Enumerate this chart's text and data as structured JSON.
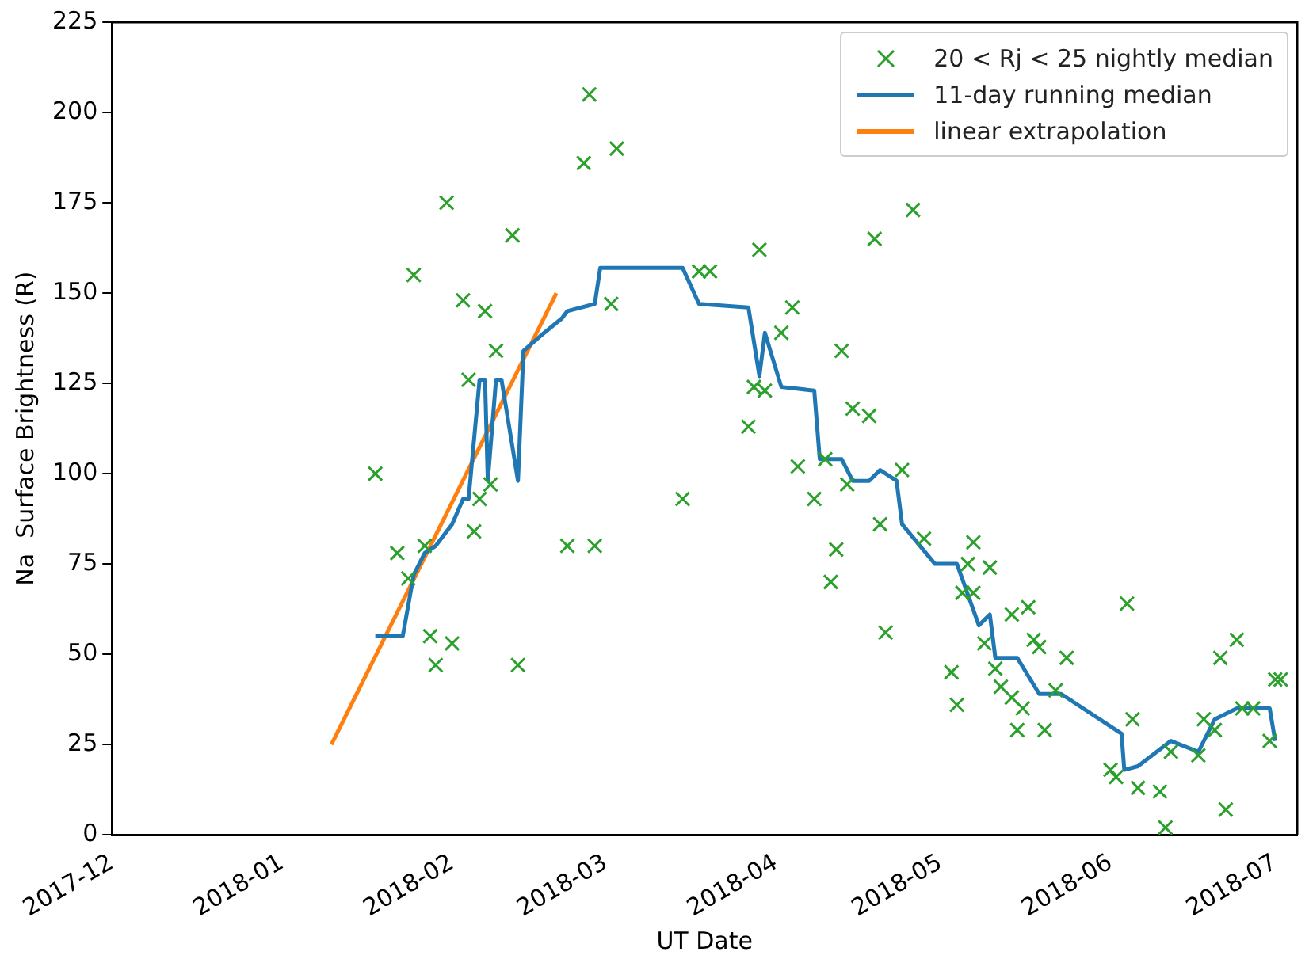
{
  "chart_data": {
    "type": "scatter",
    "xlabel": "UT Date",
    "ylabel": "Na  Surface Brightness (R)",
    "xlim": [
      "2017-12-01",
      "2018-07-05"
    ],
    "xticks": [
      "2017-12",
      "2018-01",
      "2018-02",
      "2018-03",
      "2018-04",
      "2018-05",
      "2018-06",
      "2018-07"
    ],
    "ylim": [
      0,
      225
    ],
    "yticks": [
      0,
      25,
      50,
      75,
      100,
      125,
      150,
      175,
      200,
      225
    ],
    "grid": false,
    "legend": "top right",
    "series": [
      {
        "name": "20 < Rj < 25 nightly median",
        "type": "scatter",
        "marker": "cross",
        "color": "#2ca02c",
        "x": [
          "2018-01-18",
          "2018-01-25",
          "2018-01-31",
          "2018-02-03",
          "2018-02-07",
          "2018-02-12",
          "2018-02-09",
          "2018-02-04",
          "2018-01-22",
          "2018-01-27",
          "2018-01-24",
          "2018-02-06",
          "2018-02-08",
          "2018-02-05",
          "2018-01-28",
          "2018-02-01",
          "2018-01-29",
          "2018-02-13",
          "2018-02-26",
          "2018-02-25",
          "2018-03-03",
          "2018-03-02",
          "2018-02-22",
          "2018-02-27",
          "2018-03-15",
          "2018-03-18",
          "2018-03-20",
          "2018-03-29",
          "2018-04-04",
          "2018-04-02",
          "2018-03-28",
          "2018-03-30",
          "2018-03-27",
          "2018-04-13",
          "2018-04-19",
          "2018-04-26",
          "2018-04-15",
          "2018-04-18",
          "2018-04-05",
          "2018-04-10",
          "2018-04-08",
          "2018-04-14",
          "2018-04-24",
          "2018-04-20",
          "2018-04-12",
          "2018-04-11",
          "2018-04-21",
          "2018-04-28",
          "2018-05-03",
          "2018-05-04",
          "2018-05-06",
          "2018-05-07",
          "2018-05-10",
          "2018-05-05",
          "2018-05-07",
          "2018-05-14",
          "2018-05-17",
          "2018-05-18",
          "2018-05-19",
          "2018-05-24",
          "2018-05-09",
          "2018-05-11",
          "2018-05-12",
          "2018-05-14",
          "2018-05-16",
          "2018-05-22",
          "2018-05-15",
          "2018-05-20",
          "2018-06-04",
          "2018-06-05",
          "2018-06-01",
          "2018-06-02",
          "2018-06-06",
          "2018-06-10",
          "2018-06-11",
          "2018-06-12",
          "2018-06-17",
          "2018-06-18",
          "2018-06-20",
          "2018-06-21",
          "2018-06-24",
          "2018-06-22",
          "2018-06-25",
          "2018-06-27",
          "2018-06-30",
          "2018-07-01",
          "2018-07-02"
        ],
        "values": [
          100,
          155,
          175,
          148,
          145,
          166,
          134,
          126,
          78,
          80,
          71,
          93,
          97,
          84,
          55,
          53,
          47,
          47,
          205,
          186,
          190,
          147,
          80,
          80,
          93,
          156,
          156,
          162,
          146,
          139,
          124,
          123,
          113,
          134,
          165,
          173,
          118,
          116,
          102,
          104,
          93,
          97,
          101,
          86,
          79,
          70,
          56,
          82,
          45,
          36,
          75,
          81,
          74,
          67,
          67,
          61,
          63,
          54,
          52,
          49,
          53,
          46,
          41,
          38,
          35,
          40,
          29,
          29,
          64,
          32,
          18,
          16,
          13,
          12,
          2,
          23,
          22,
          32,
          29,
          49,
          54,
          7,
          35,
          35,
          26,
          43,
          43
        ]
      },
      {
        "name": "11-day running median",
        "type": "line",
        "marker": "none",
        "color": "#1f77b4",
        "x": [
          "2018-01-18",
          "2018-01-23",
          "2018-01-25",
          "2018-01-27",
          "2018-01-29",
          "2018-02-01",
          "2018-02-03",
          "2018-02-04",
          "2018-02-06",
          "2018-02-07",
          "2018-02-07T12:00",
          "2018-02-09",
          "2018-02-10",
          "2018-02-13",
          "2018-02-14",
          "2018-02-17",
          "2018-02-21",
          "2018-02-22",
          "2018-02-27",
          "2018-02-28",
          "2018-03-15",
          "2018-03-18",
          "2018-03-27",
          "2018-03-29",
          "2018-03-30",
          "2018-04-02",
          "2018-04-08",
          "2018-04-09",
          "2018-04-13",
          "2018-04-15",
          "2018-04-18",
          "2018-04-20",
          "2018-04-23",
          "2018-04-24",
          "2018-04-30",
          "2018-05-04",
          "2018-05-08",
          "2018-05-10",
          "2018-05-11",
          "2018-05-15",
          "2018-05-19",
          "2018-05-23",
          "2018-06-03",
          "2018-06-03T12:00",
          "2018-06-06",
          "2018-06-12",
          "2018-06-17",
          "2018-06-20",
          "2018-06-24",
          "2018-06-30",
          "2018-07-01"
        ],
        "values": [
          55,
          55,
          72,
          78,
          80,
          86,
          93,
          93,
          126,
          126,
          98,
          126,
          126,
          98,
          134,
          138,
          143,
          145,
          147,
          157,
          157,
          147,
          146,
          127,
          139,
          124,
          123,
          104,
          104,
          98,
          98,
          101,
          98,
          86,
          75,
          75,
          58,
          61,
          49,
          49,
          39,
          39,
          28,
          18,
          19,
          26,
          23,
          32,
          35,
          35,
          26
        ]
      },
      {
        "name": "linear extrapolation",
        "type": "line",
        "marker": "none",
        "color": "#ff7f0e",
        "x": [
          "2018-01-10",
          "2018-02-20"
        ],
        "values": [
          25,
          150
        ]
      }
    ]
  }
}
